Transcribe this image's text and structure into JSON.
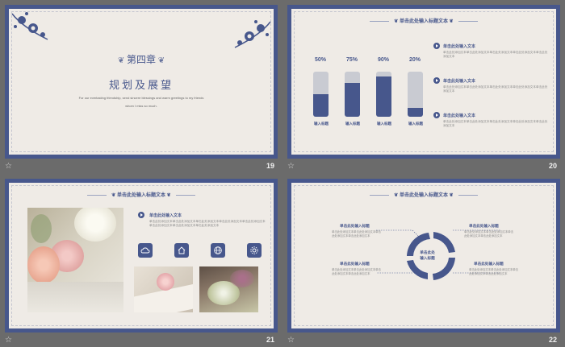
{
  "footer_star": "☆",
  "slides": [
    {
      "number": "19",
      "chapter": "第四章",
      "heading": "规划及展望",
      "tagline1": "For our everlasting friendship, send sincere blessings and warm greetings to my friends",
      "tagline2": "whom I miss so much."
    },
    {
      "number": "20",
      "banner": "单击此处输入标题文本",
      "chart_data": {
        "type": "bar",
        "categories": [
          "输入标题",
          "输入标题",
          "输入标题",
          "输入标题"
        ],
        "values": [
          50,
          75,
          90,
          20
        ],
        "value_labels": [
          "50%",
          "75%",
          "90%",
          "20%"
        ],
        "ylim": [
          0,
          100
        ]
      },
      "items": [
        {
          "title": "单击此处输入文本",
          "body": "单击此处添加文本单击此处添加文本单击此处添加文本单击此处添加文本单击此处添加文本"
        },
        {
          "title": "单击此处输入文本",
          "body": "单击此处添加文本单击此处添加文本单击此处添加文本单击此处添加文本单击此处添加文本"
        },
        {
          "title": "单击此处输入文本",
          "body": "单击此处添加文本单击此处添加文本单击此处添加文本单击此处添加文本单击此处添加文本"
        }
      ]
    },
    {
      "number": "21",
      "banner": "单击此处输入标题文本",
      "item_title": "单击此处输入文本",
      "item_body": "单击此处添加文本单击此处添加文本单击此处添加文本单击此处添加文本单击此处添加文本单击此处添加文本单击此处添加文本单击此处添加文本",
      "icons": [
        "cloud-icon",
        "home-icon",
        "globe-icon",
        "settings-icon"
      ]
    },
    {
      "number": "22",
      "banner": "单击此处输入标题文本",
      "center_label1": "单击此处",
      "center_label2": "输入标题",
      "nodes": [
        {
          "title": "单击此处输入标题",
          "body": "单击此处添加文本单击此处添加文本单击此处添加文本单击此处添加文本"
        },
        {
          "title": "单击此处输入标题",
          "body": "单击此处添加文本单击此处添加文本单击此处添加文本单击此处添加文本"
        },
        {
          "title": "单击此处输入标题",
          "body": "单击此处添加文本单击此处添加文本单击此处添加文本单击此处添加文本"
        },
        {
          "title": "单击此处输入标题",
          "body": "单击此处添加文本单击此处添加文本单击此处添加文本单击此处添加文本"
        }
      ]
    }
  ],
  "colors": {
    "navy": "#47578c",
    "paper": "#efebe6",
    "bg": "#6b6b6b"
  }
}
